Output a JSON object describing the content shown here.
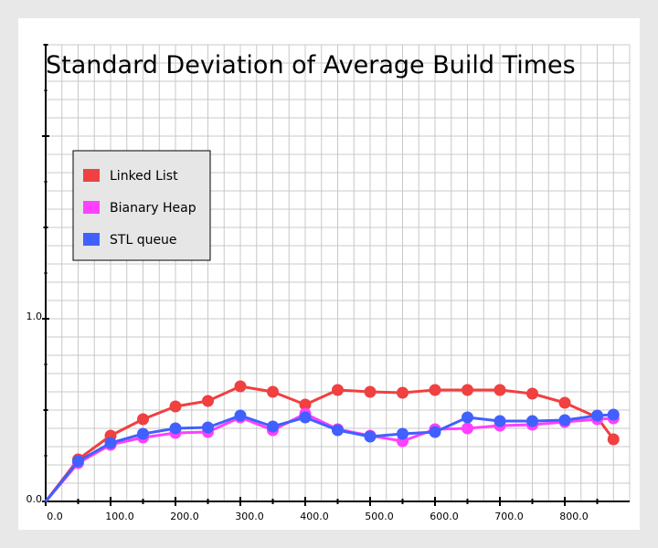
{
  "chart_data": {
    "type": "line",
    "title": "Standard Deviation of Average Build Times",
    "xlabel": "",
    "ylabel": "",
    "x": [
      0,
      50,
      100,
      150,
      200,
      250,
      300,
      350,
      400,
      450,
      500,
      550,
      600,
      650,
      700,
      750,
      800,
      850,
      875
    ],
    "x_ticks": [
      "0.0",
      "100.0",
      "200.0",
      "300.0",
      "400.0",
      "500.0",
      "600.0",
      "700.0",
      "800.0"
    ],
    "y_ticks": [
      "0.0",
      "1.0"
    ],
    "xlim": [
      0,
      900
    ],
    "ylim": [
      0,
      2.5
    ],
    "grid": true,
    "legend_position": "top-left",
    "series": [
      {
        "name": "Linked List",
        "color": "#f04040",
        "values": [
          0,
          0.23,
          0.36,
          0.45,
          0.52,
          0.55,
          0.63,
          0.6,
          0.53,
          0.61,
          0.6,
          0.595,
          0.61,
          0.61,
          0.61,
          0.59,
          0.54,
          0.46,
          0.34
        ]
      },
      {
        "name": "Bianary Heap",
        "color": "#ff40ff",
        "values": [
          0,
          0.21,
          0.31,
          0.35,
          0.375,
          0.38,
          0.46,
          0.39,
          0.48,
          0.395,
          0.36,
          0.33,
          0.395,
          0.4,
          0.415,
          0.42,
          0.435,
          0.45,
          0.455
        ]
      },
      {
        "name": "STL queue",
        "color": "#4060ff",
        "values": [
          0,
          0.22,
          0.32,
          0.37,
          0.4,
          0.405,
          0.47,
          0.41,
          0.46,
          0.39,
          0.355,
          0.37,
          0.38,
          0.46,
          0.44,
          0.44,
          0.445,
          0.47,
          0.475
        ]
      }
    ]
  }
}
